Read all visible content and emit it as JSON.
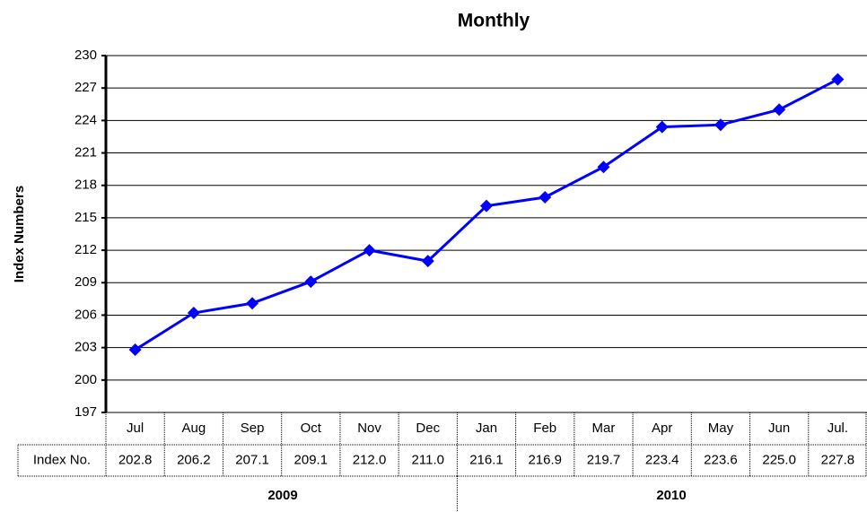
{
  "chart_data": {
    "type": "line",
    "title": "Monthly",
    "y_label": "Index Numbers",
    "categories": [
      "Jul",
      "Aug",
      "Sep",
      "Oct",
      "Nov",
      "Dec",
      "Jan",
      "Feb",
      "Mar",
      "Apr",
      "May",
      "Jun",
      "Jul."
    ],
    "series": [
      {
        "name": "Index No.",
        "color": "#0000ff",
        "values": [
          202.8,
          206.2,
          207.1,
          209.1,
          212.0,
          211.0,
          216.1,
          216.9,
          219.7,
          223.4,
          223.6,
          225.0,
          227.8
        ],
        "value_labels": [
          "202.8",
          "206.2",
          "207.1",
          "209.1",
          "212.0",
          "211.0",
          "216.1",
          "216.9",
          "219.7",
          "223.4",
          "223.6",
          "225.0",
          "227.8"
        ]
      }
    ],
    "year_groups": [
      "2009",
      "2010"
    ],
    "ylim": [
      197,
      230
    ],
    "yticks": [
      197,
      200,
      203,
      206,
      209,
      212,
      215,
      218,
      221,
      224,
      227,
      230
    ],
    "grid": true
  }
}
